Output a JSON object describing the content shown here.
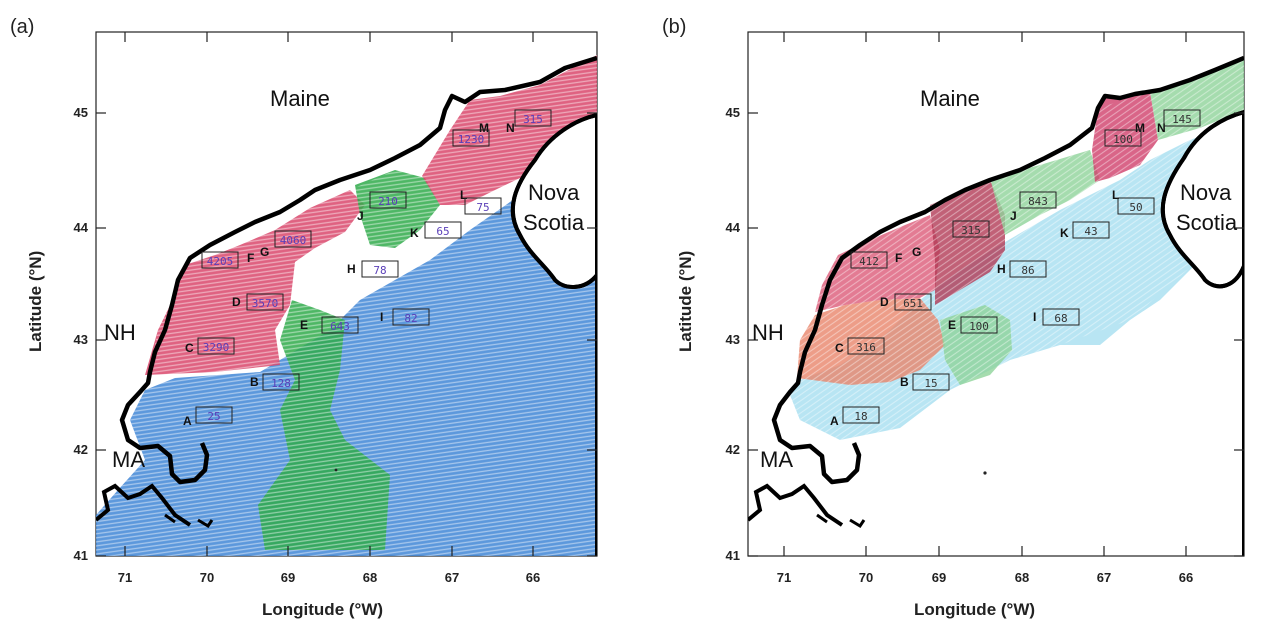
{
  "panels": [
    {
      "letter": "(a)",
      "xlabel": "Longitude (°W)",
      "ylabel": "Latitude (°N)",
      "value_color": "#5a3fb8",
      "x_ticks": [
        "71",
        "70",
        "69",
        "68",
        "67",
        "66"
      ],
      "y_ticks": [
        "45",
        "44",
        "43",
        "42",
        "41"
      ],
      "places": [
        "Maine",
        "Nova",
        "Scotia",
        "NH",
        "MA"
      ],
      "zones": [
        {
          "name": "southwest-red",
          "color": "#d9466b"
        },
        {
          "name": "central-green-south",
          "color": "#2faa4a"
        },
        {
          "name": "central-green-north",
          "color": "#2faa4a"
        },
        {
          "name": "northeast-red",
          "color": "#d9466b"
        },
        {
          "name": "gulf-blue",
          "color": "#3f86d6"
        }
      ],
      "sites": [
        {
          "id": "A",
          "value": "25"
        },
        {
          "id": "B",
          "value": "128"
        },
        {
          "id": "C",
          "value": "3290"
        },
        {
          "id": "D",
          "value": "3570"
        },
        {
          "id": "E",
          "value": "643"
        },
        {
          "id": "F",
          "value": "4205"
        },
        {
          "id": "G",
          "value": "4060"
        },
        {
          "id": "H",
          "value": "78"
        },
        {
          "id": "I",
          "value": "82"
        },
        {
          "id": "J",
          "value": "210"
        },
        {
          "id": "K",
          "value": "65"
        },
        {
          "id": "L",
          "value": "75"
        },
        {
          "id": "M",
          "value": "1230"
        },
        {
          "id": "N",
          "value": "315"
        }
      ]
    },
    {
      "letter": "(b)",
      "xlabel": "Longitude (°W)",
      "ylabel": "Latitude (°N)",
      "value_color": "#333333",
      "x_ticks": [
        "71",
        "70",
        "69",
        "68",
        "67",
        "66"
      ],
      "y_ticks": [
        "45",
        "44",
        "43",
        "42",
        "41"
      ],
      "places": [
        "Maine",
        "Nova",
        "Scotia",
        "NH",
        "MA"
      ],
      "zones": [
        {
          "name": "southwest-orange",
          "color": "#e8846a"
        },
        {
          "name": "north-red",
          "color": "#dc5a78"
        },
        {
          "name": "dark-red",
          "color": "#b23a55"
        },
        {
          "name": "east-green",
          "color": "#8fd39a"
        },
        {
          "name": "central-green",
          "color": "#8fd39a"
        },
        {
          "name": "northeast-red",
          "color": "#cf3f6a"
        },
        {
          "name": "offshore-cyan",
          "color": "#a6dff0"
        }
      ],
      "sites": [
        {
          "id": "A",
          "value": "18"
        },
        {
          "id": "B",
          "value": "15"
        },
        {
          "id": "C",
          "value": "316"
        },
        {
          "id": "D",
          "value": "651"
        },
        {
          "id": "E",
          "value": "100"
        },
        {
          "id": "F",
          "value": "412"
        },
        {
          "id": "G",
          "value": "315"
        },
        {
          "id": "H",
          "value": "86"
        },
        {
          "id": "I",
          "value": "68"
        },
        {
          "id": "J",
          "value": "843"
        },
        {
          "id": "K",
          "value": "43"
        },
        {
          "id": "L",
          "value": "50"
        },
        {
          "id": "M",
          "value": "100"
        },
        {
          "id": "N",
          "value": "145"
        }
      ]
    }
  ]
}
